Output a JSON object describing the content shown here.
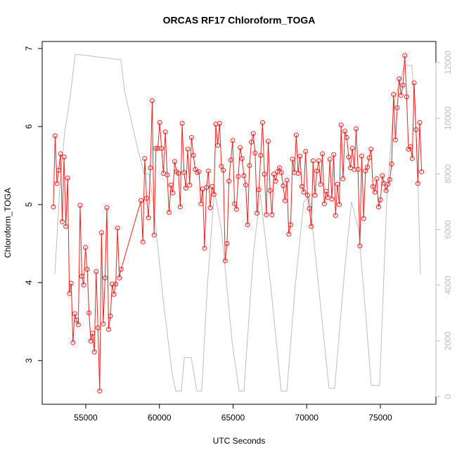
{
  "chart_data": {
    "type": "line",
    "title": "ORCAS RF17 Chloroform_TOGA",
    "x_label": "UTC Seconds",
    "y_label": "Chloroform_TOGA",
    "xlim": [
      52041,
      78771
    ],
    "xticks": [
      55000,
      60000,
      65000,
      70000,
      75000
    ],
    "ylim": [
      2.44,
      7.09
    ],
    "yticks": [
      3,
      4,
      5,
      6,
      7
    ],
    "y2lim": [
      -278,
      12758
    ],
    "y2ticks": [
      0,
      2000,
      4000,
      6000,
      8000,
      10000,
      12000
    ],
    "series": [
      {
        "color": "#bdbdbd",
        "axis": "y2",
        "markers": false,
        "x": [
          52900,
          53234,
          53568,
          53950,
          54284,
          55860,
          57387,
          57626,
          58485,
          58962,
          59296,
          59582,
          60250,
          60871,
          61110,
          61492,
          61683,
          62160,
          62541,
          62875,
          63257,
          63735,
          64212,
          64928,
          65405,
          65739,
          66360,
          66838,
          67554,
          68270,
          68652,
          69225,
          69797,
          70179,
          70895,
          71515,
          71897,
          72565,
          73043,
          73520,
          73998,
          74380,
          74952,
          75429,
          75906,
          76622,
          77147,
          77481,
          77720
        ],
        "values": [
          4400,
          7500,
          9500,
          10800,
          12300,
          12200,
          12100,
          11000,
          9000,
          8000,
          8000,
          7000,
          3500,
          800,
          200,
          200,
          1400,
          1400,
          200,
          200,
          4000,
          7400,
          6000,
          2000,
          200,
          200,
          5000,
          7300,
          4000,
          200,
          200,
          4000,
          7000,
          7200,
          3500,
          300,
          300,
          4500,
          7000,
          6000,
          3000,
          400,
          400,
          7000,
          10500,
          11900,
          11900,
          9000,
          4400
        ]
      },
      {
        "color": "#ee2222",
        "axis": "y",
        "markers": true,
        "x": [
          52800,
          52921,
          53042,
          53163,
          53284,
          53405,
          53526,
          53647,
          53768,
          53889,
          54010,
          54131,
          54252,
          54373,
          54494,
          54615,
          54736,
          54857,
          54978,
          55099,
          55220,
          55341,
          55462,
          55583,
          55704,
          55825,
          55946,
          56067,
          56188,
          56309,
          56430,
          56551,
          56672,
          56793,
          56914,
          57035,
          57156,
          57277,
          57398,
          58750,
          58877,
          59004,
          59131,
          59258,
          59385,
          59512,
          59639,
          59766,
          59893,
          60020,
          60147,
          60274,
          60401,
          60528,
          60655,
          60782,
          60909,
          61036,
          61163,
          61290,
          61417,
          61544,
          61671,
          61798,
          61925,
          62052,
          62179,
          62306,
          62433,
          62560,
          62687,
          62814,
          62941,
          63068,
          63195,
          63322,
          63449,
          63576,
          63703,
          63830,
          63957,
          64084,
          64211,
          64338,
          64465,
          64592,
          64719,
          64846,
          64973,
          65100,
          65227,
          65354,
          65481,
          65608,
          65735,
          65862,
          65989,
          66116,
          66243,
          66370,
          66497,
          66624,
          66751,
          66878,
          67005,
          67132,
          67259,
          67386,
          67513,
          67640,
          67767,
          67894,
          68021,
          68148,
          68275,
          68402,
          68529,
          68656,
          68783,
          68910,
          69037,
          69164,
          69291,
          69418,
          69545,
          69672,
          69799,
          69926,
          70053,
          70180,
          70307,
          70434,
          70561,
          70688,
          70815,
          70942,
          71069,
          71196,
          71323,
          71450,
          71577,
          71704,
          71831,
          71958,
          72085,
          72212,
          72339,
          72466,
          72593,
          72720,
          72847,
          72974,
          73101,
          73228,
          73355,
          73482,
          73609,
          73736,
          73863,
          73990,
          74117,
          74244,
          74371,
          74498,
          74625,
          74752,
          74879,
          75006,
          75133,
          75260,
          75387,
          75514,
          75641,
          75768,
          75895,
          76022,
          76149,
          76276,
          76403,
          76530,
          76657,
          76784,
          76911,
          77038,
          77165,
          77292,
          77419,
          77546,
          77673,
          77800
        ],
        "values": [
          4.97,
          5.88,
          5.27,
          5.44,
          5.65,
          4.78,
          5.61,
          4.72,
          5.34,
          3.86,
          3.99,
          3.23,
          3.6,
          3.52,
          3.46,
          4.99,
          4.08,
          3.97,
          4.45,
          4.17,
          3.61,
          3.25,
          3.35,
          3.11,
          4.14,
          3.42,
          2.61,
          4.64,
          3.47,
          4.06,
          4.96,
          3.4,
          3.57,
          3.98,
          3.85,
          3.98,
          4.7,
          4.06,
          4.17,
          5.05,
          4.52,
          5.59,
          5.08,
          4.83,
          5.47,
          6.33,
          4.61,
          5.72,
          5.72,
          6.05,
          5.72,
          5.4,
          5.93,
          5.38,
          4.9,
          5.25,
          5.15,
          5.55,
          5.42,
          5.4,
          4.97,
          6.04,
          5.41,
          5.21,
          5.71,
          5.25,
          5.86,
          5.63,
          5.45,
          5.41,
          5.42,
          5.01,
          5.2,
          4.44,
          5.22,
          5.43,
          4.96,
          5.23,
          5.13,
          6.03,
          5.76,
          6.04,
          5.49,
          5.44,
          4.28,
          4.5,
          5.3,
          5.57,
          5.82,
          5.01,
          4.94,
          5.36,
          5.73,
          5.59,
          5.37,
          5.25,
          4.74,
          5.5,
          5.8,
          5.91,
          5.66,
          4.89,
          5.19,
          5.63,
          6.05,
          5.39,
          4.87,
          5.81,
          5.18,
          4.87,
          5.39,
          5.3,
          5.42,
          5.47,
          5.41,
          5.24,
          5.05,
          5.31,
          4.62,
          4.74,
          5.58,
          5.41,
          5.89,
          5.4,
          5.62,
          5.23,
          5.16,
          5.68,
          5.12,
          4.95,
          4.72,
          5.56,
          5.12,
          5.43,
          5.56,
          5.26,
          5.65,
          5.01,
          5.17,
          5.09,
          5.58,
          5.07,
          5.64,
          4.86,
          5.26,
          5.0,
          6.02,
          5.33,
          5.94,
          5.86,
          5.61,
          5.47,
          5.72,
          5.45,
          5.97,
          5.45,
          4.47,
          5.62,
          4.82,
          5.43,
          5.48,
          5.6,
          5.71,
          5.23,
          5.16,
          5.33,
          4.97,
          5.06,
          5.37,
          5.27,
          5.18,
          5.26,
          5.32,
          5.52,
          6.41,
          5.83,
          6.24,
          6.61,
          6.4,
          6.53,
          6.91,
          6.38,
          5.71,
          5.74,
          5.59,
          6.56,
          5.96,
          5.27,
          6.05,
          5.42
        ]
      }
    ]
  }
}
